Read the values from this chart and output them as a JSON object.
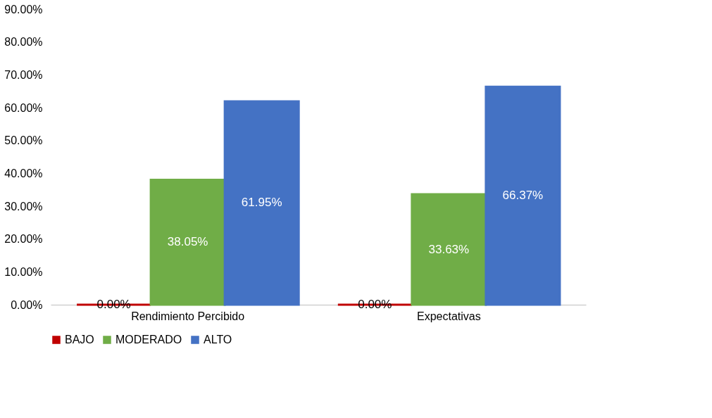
{
  "chart_data": {
    "type": "bar",
    "categories": [
      "Rendimiento Percibido",
      "Expectativas"
    ],
    "series": [
      {
        "name": "BAJO",
        "color": "#c00000",
        "values": [
          0,
          0
        ],
        "value_labels": [
          "0.00%",
          "0.00%"
        ]
      },
      {
        "name": "MODERADO",
        "color": "#70ad47",
        "values": [
          38.05,
          33.63
        ],
        "value_labels": [
          "38.05%",
          "33.63%"
        ]
      },
      {
        "name": "ALTO",
        "color": "#4472c4",
        "values": [
          61.95,
          66.37
        ],
        "value_labels": [
          "61.95%",
          "66.37%"
        ]
      }
    ],
    "ylim": [
      0,
      90
    ],
    "yticks": [
      {
        "value": 0,
        "label": "0.00%"
      },
      {
        "value": 10,
        "label": "10.00%"
      },
      {
        "value": 20,
        "label": "20.00%"
      },
      {
        "value": 30,
        "label": "30.00%"
      },
      {
        "value": 40,
        "label": "40.00%"
      },
      {
        "value": 50,
        "label": "50.00%"
      },
      {
        "value": 60,
        "label": "60.00%"
      },
      {
        "value": 70,
        "label": "70.00%"
      },
      {
        "value": 80,
        "label": "80.00%"
      },
      {
        "value": 90,
        "label": "90.00%"
      }
    ],
    "grid": false,
    "legend": "bottom"
  }
}
